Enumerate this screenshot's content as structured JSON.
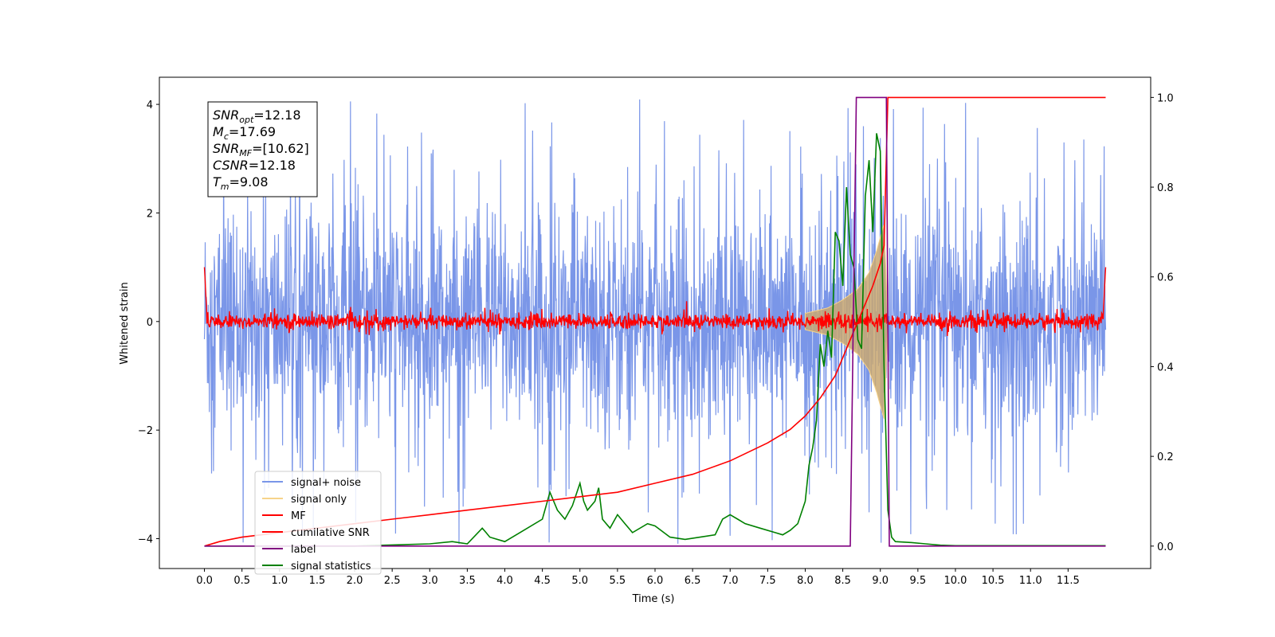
{
  "chart_data": {
    "type": "line",
    "xlabel": "Time (s)",
    "ylabel": "Whitened strain",
    "xlim": [
      -0.6,
      12.6
    ],
    "ylim": [
      -4.55,
      4.5
    ],
    "ylim_right": [
      -0.05,
      1.045
    ],
    "x_ticks": [
      0.0,
      0.5,
      1.0,
      1.5,
      2.0,
      2.5,
      3.0,
      3.5,
      4.0,
      4.5,
      5.0,
      5.5,
      6.0,
      6.5,
      7.0,
      7.5,
      8.0,
      8.5,
      9.0,
      9.5,
      10.0,
      10.5,
      11.0,
      11.5
    ],
    "x_tick_labels": [
      "0.0",
      "0.5",
      "1.0",
      "1.5",
      "2.0",
      "2.5",
      "3.0",
      "3.5",
      "4.0",
      "4.5",
      "5.0",
      "5.5",
      "6.0",
      "6.5",
      "7.0",
      "7.5",
      "8.0",
      "8.5",
      "9.0",
      "9.5",
      "10.0",
      "10.5",
      "11.0",
      "11.5"
    ],
    "y_ticks": [
      -4,
      -2,
      0,
      2,
      4
    ],
    "y_tick_labels": [
      "−4",
      "−2",
      "0",
      "2",
      "4"
    ],
    "y_right_ticks": [
      0.0,
      0.2,
      0.4,
      0.6,
      0.8,
      1.0
    ],
    "y_right_tick_labels": [
      "0.0",
      "0.2",
      "0.4",
      "0.6",
      "0.8",
      "1.0"
    ],
    "grid": false,
    "legend_position": "lower-left",
    "annotation": {
      "lines": [
        {
          "main": "SNR",
          "sub": "opt",
          "rest": "=12.18"
        },
        {
          "main": "M",
          "sub": "c",
          "rest": "=17.69"
        },
        {
          "main": "SNR",
          "sub": "MF",
          "rest": "=[10.62]"
        },
        {
          "main": "CSNR",
          "sub": "",
          "rest": "=12.18"
        },
        {
          "main": "T",
          "sub": "m",
          "rest": "=9.08"
        }
      ]
    },
    "series": [
      {
        "name": "signal+ noise",
        "color": "#7a96e8",
        "axis": "left",
        "description_values": {
          "x_start": 0.0,
          "x_end": 12.0,
          "band_min": -4.1,
          "band_max": 4.1,
          "typical_std": 1.0
        }
      },
      {
        "name": "signal only",
        "color": "#f7d38a",
        "axis": "left",
        "envelope": {
          "x": [
            8.0,
            8.3,
            8.5,
            8.7,
            8.85,
            8.95,
            9.05,
            9.1
          ],
          "amp": [
            0.15,
            0.25,
            0.4,
            0.6,
            0.9,
            1.3,
            1.8,
            0.0
          ]
        }
      },
      {
        "name": "MF",
        "color": "#ff0000",
        "axis": "left",
        "description_values": {
          "x_start": 0.0,
          "x_end": 12.0,
          "mean": 0.0,
          "amp": 0.2
        }
      },
      {
        "name": "cumilative SNR",
        "color": "#ff0000",
        "axis": "right",
        "x": [
          0.0,
          0.2,
          0.5,
          1.0,
          1.5,
          2.0,
          2.5,
          3.0,
          3.5,
          4.0,
          4.5,
          5.0,
          5.5,
          6.0,
          6.5,
          7.0,
          7.5,
          7.8,
          8.0,
          8.2,
          8.4,
          8.5,
          8.6,
          8.7,
          8.8,
          8.9,
          9.0,
          9.05,
          9.1,
          12.0
        ],
        "values": [
          0.0,
          0.01,
          0.02,
          0.03,
          0.04,
          0.05,
          0.06,
          0.07,
          0.08,
          0.09,
          0.1,
          0.11,
          0.12,
          0.14,
          0.16,
          0.19,
          0.23,
          0.26,
          0.29,
          0.33,
          0.38,
          0.42,
          0.46,
          0.5,
          0.54,
          0.58,
          0.63,
          0.67,
          1.0,
          1.0
        ]
      },
      {
        "name": "label",
        "color": "#800080",
        "axis": "right",
        "x": [
          0.0,
          8.6,
          8.68,
          9.08,
          9.12,
          12.0
        ],
        "values": [
          0.0,
          0.0,
          1.0,
          1.0,
          0.0,
          0.0
        ]
      },
      {
        "name": "signal statistics",
        "color": "#008000",
        "axis": "right",
        "x": [
          0.0,
          1.0,
          2.0,
          3.0,
          3.3,
          3.5,
          3.7,
          3.75,
          3.8,
          4.0,
          4.2,
          4.5,
          4.6,
          4.7,
          4.8,
          4.9,
          5.0,
          5.05,
          5.1,
          5.2,
          5.25,
          5.3,
          5.4,
          5.5,
          5.6,
          5.7,
          5.9,
          6.0,
          6.2,
          6.4,
          6.6,
          6.8,
          6.9,
          7.0,
          7.1,
          7.2,
          7.4,
          7.6,
          7.7,
          7.8,
          7.9,
          8.0,
          8.05,
          8.1,
          8.15,
          8.2,
          8.25,
          8.3,
          8.35,
          8.4,
          8.45,
          8.5,
          8.55,
          8.6,
          8.65,
          8.7,
          8.75,
          8.8,
          8.85,
          8.9,
          8.95,
          9.0,
          9.05,
          9.1,
          9.15,
          9.2,
          9.4,
          9.6,
          9.8,
          10.0,
          11.0,
          12.0
        ],
        "values": [
          0.0,
          0.0,
          0.0,
          0.005,
          0.01,
          0.005,
          0.04,
          0.03,
          0.02,
          0.01,
          0.03,
          0.06,
          0.12,
          0.08,
          0.06,
          0.09,
          0.14,
          0.1,
          0.08,
          0.1,
          0.13,
          0.06,
          0.04,
          0.07,
          0.05,
          0.03,
          0.05,
          0.045,
          0.02,
          0.015,
          0.02,
          0.025,
          0.06,
          0.07,
          0.06,
          0.05,
          0.04,
          0.03,
          0.025,
          0.035,
          0.05,
          0.1,
          0.18,
          0.22,
          0.28,
          0.45,
          0.4,
          0.48,
          0.42,
          0.7,
          0.68,
          0.58,
          0.8,
          0.65,
          0.62,
          0.46,
          0.44,
          0.78,
          0.86,
          0.7,
          0.92,
          0.88,
          0.4,
          0.08,
          0.02,
          0.01,
          0.008,
          0.005,
          0.002,
          0.001,
          0.001,
          0.001
        ]
      }
    ]
  }
}
